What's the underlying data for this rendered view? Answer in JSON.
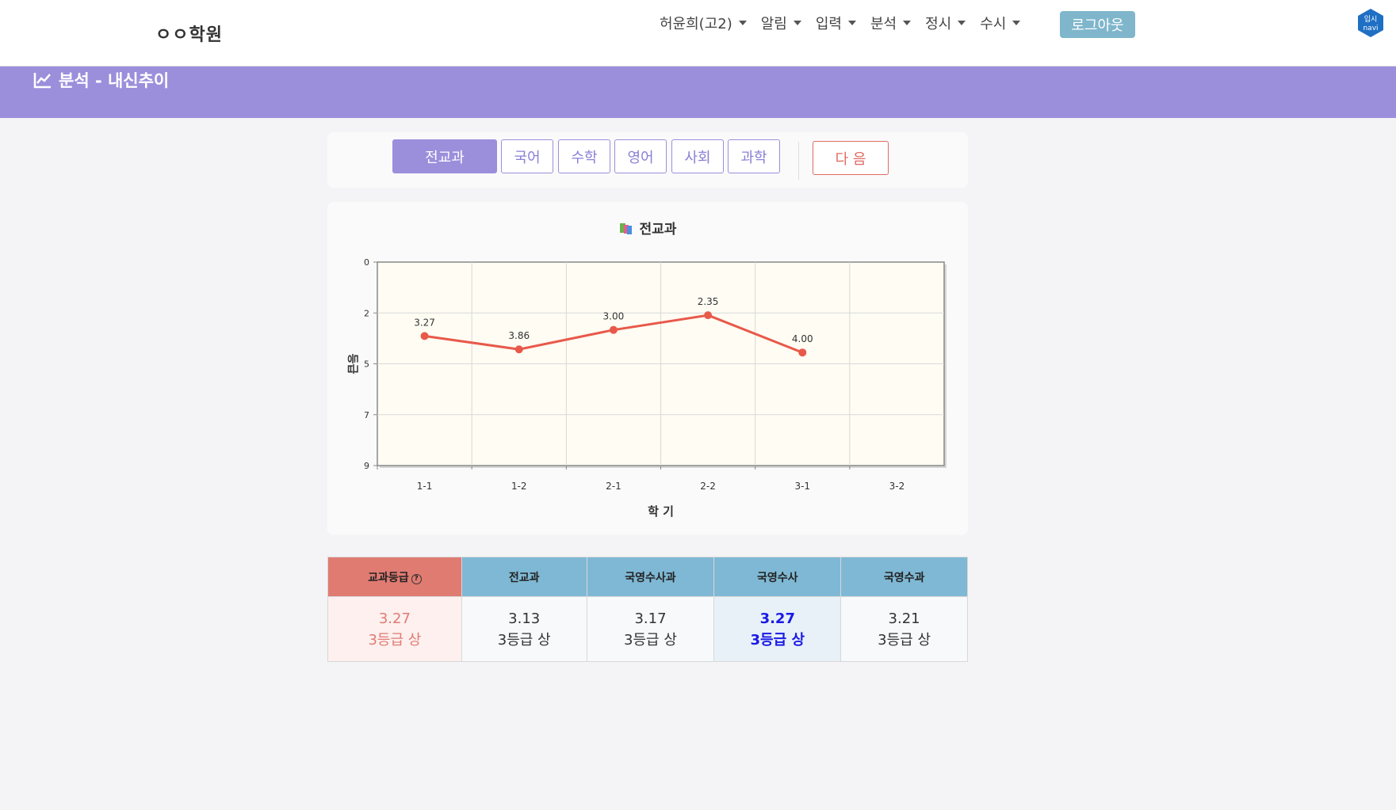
{
  "header": {
    "brand": "ㅇㅇ학원",
    "nav": [
      {
        "label": "허윤희(고2)"
      },
      {
        "label": "알림"
      },
      {
        "label": "입력"
      },
      {
        "label": "분석"
      },
      {
        "label": "정시"
      },
      {
        "label": "수시"
      }
    ],
    "logout_label": "로그아웃",
    "logo_text_top": "입시",
    "logo_text_bottom": "navi"
  },
  "page": {
    "title": "분석 - 내신추이"
  },
  "tabs": [
    {
      "label": "전교과",
      "active": true
    },
    {
      "label": "국어",
      "active": false
    },
    {
      "label": "수학",
      "active": false
    },
    {
      "label": "영어",
      "active": false
    },
    {
      "label": "사회",
      "active": false
    },
    {
      "label": "과학",
      "active": false
    }
  ],
  "next_label": "다 음",
  "chart_data": {
    "type": "line",
    "title": "전교과",
    "xlabel": "학 기",
    "ylabel": "등급",
    "categories": [
      "1-1",
      "1-2",
      "2-1",
      "2-2",
      "3-1",
      "3-2"
    ],
    "series": [
      {
        "values": [
          3.27,
          3.86,
          3.0,
          2.35,
          4.0,
          null
        ],
        "labels": [
          "3.27",
          "3.86",
          "3.00",
          "2.35",
          "4.00",
          ""
        ],
        "color": "#e8594a"
      }
    ],
    "y_ticks": [
      "0",
      "2",
      "5",
      "7",
      "9"
    ],
    "ylim": [
      0,
      9
    ],
    "y_inverted": true,
    "grid": true,
    "plot_bg": "#fffcf3"
  },
  "grade_table": {
    "headers": [
      "교과등급",
      "전교과",
      "국영수사과",
      "국영수사",
      "국영수과"
    ],
    "rows": [
      [
        {
          "score": "3.27",
          "grade": "3등급 상"
        },
        {
          "score": "3.13",
          "grade": "3등급 상"
        },
        {
          "score": "3.17",
          "grade": "3등급 상"
        },
        {
          "score": "3.27",
          "grade": "3등급 상"
        },
        {
          "score": "3.21",
          "grade": "3등급 상"
        }
      ]
    ]
  },
  "colors": {
    "accent_purple": "#9b8fdc",
    "table_header_blue": "#7fb8d4",
    "table_header_red": "#e07b72",
    "highlight_blue": "#1a1ae6"
  }
}
